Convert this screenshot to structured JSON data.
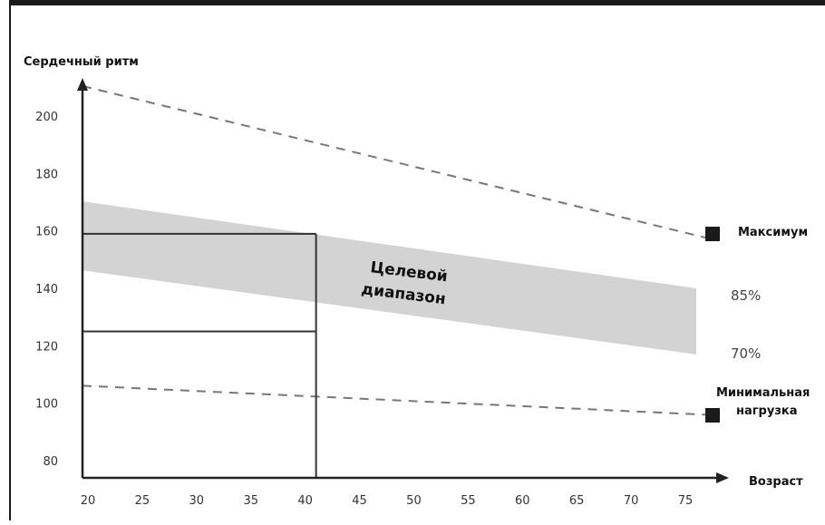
{
  "chart_data": {
    "type": "line",
    "title": "",
    "ylabel": "Сердечный ритм",
    "xlabel": "Возраст",
    "xlim": [
      20,
      77
    ],
    "ylim": [
      76,
      212
    ],
    "x_ticks": [
      20,
      25,
      30,
      35,
      40,
      45,
      50,
      55,
      60,
      65,
      70,
      75
    ],
    "y_ticks": [
      80,
      100,
      120,
      140,
      160,
      180,
      200
    ],
    "series": [
      {
        "name": "Максимум",
        "style": "dashed",
        "x": [
          20,
          76
        ],
        "y": [
          210,
          158
        ]
      },
      {
        "name": "Минимальная нагрузка",
        "style": "dashed",
        "x": [
          20,
          76
        ],
        "y": [
          106,
          96
        ]
      },
      {
        "name": "85%",
        "style": "band-upper",
        "x": [
          20,
          76
        ],
        "y": [
          170,
          140
        ]
      },
      {
        "name": "70%",
        "style": "band-lower",
        "x": [
          20,
          76
        ],
        "y": [
          146,
          117
        ]
      }
    ],
    "target_zone": {
      "label_line1": "Целевой",
      "label_line2": "диапазон",
      "color": "#d3d3d3"
    },
    "reference_box": {
      "x": [
        20,
        41
      ],
      "y": [
        125,
        159
      ]
    },
    "end_labels": {
      "max": "Максимум",
      "p85": "85%",
      "p70": "70%",
      "min_line1": "Минимальная",
      "min_line2": "нагрузка"
    },
    "colors": {
      "axis": "#222222",
      "dash": "#777777",
      "band": "#d3d3d3",
      "marker": "#1a1a1a"
    }
  }
}
